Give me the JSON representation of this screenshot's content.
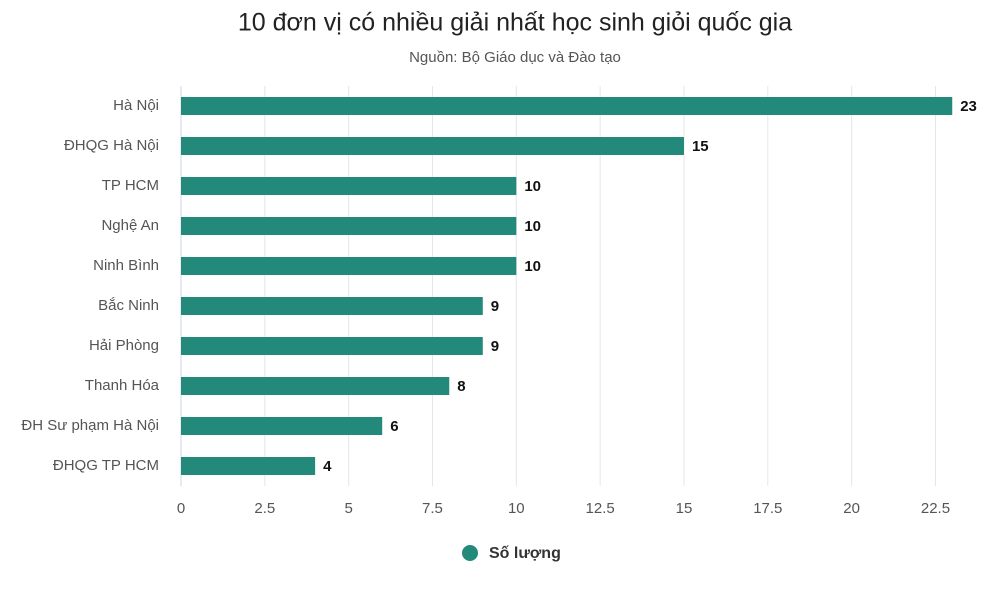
{
  "chart_data": {
    "type": "bar",
    "orientation": "horizontal",
    "title": "10 đơn vị có nhiều giải nhất học sinh giỏi quốc gia",
    "subtitle": "Nguồn: Bộ Giáo dục và Đào tạo",
    "categories": [
      "Hà Nội",
      "ĐHQG Hà Nội",
      "TP HCM",
      "Nghệ An",
      "Ninh Bình",
      "Bắc Ninh",
      "Hải Phòng",
      "Thanh Hóa",
      "ĐH Sư phạm Hà Nội",
      "ĐHQG TP HCM"
    ],
    "series": [
      {
        "name": "Số lượng",
        "color": "#23897a",
        "values": [
          23,
          15,
          10,
          10,
          10,
          9,
          9,
          8,
          6,
          4
        ]
      }
    ],
    "xlim": [
      0,
      23.5
    ],
    "xticks": [
      0,
      2.5,
      5,
      7.5,
      10,
      12.5,
      15,
      17.5,
      20,
      22.5
    ],
    "grid": true,
    "legend": "bottom"
  }
}
